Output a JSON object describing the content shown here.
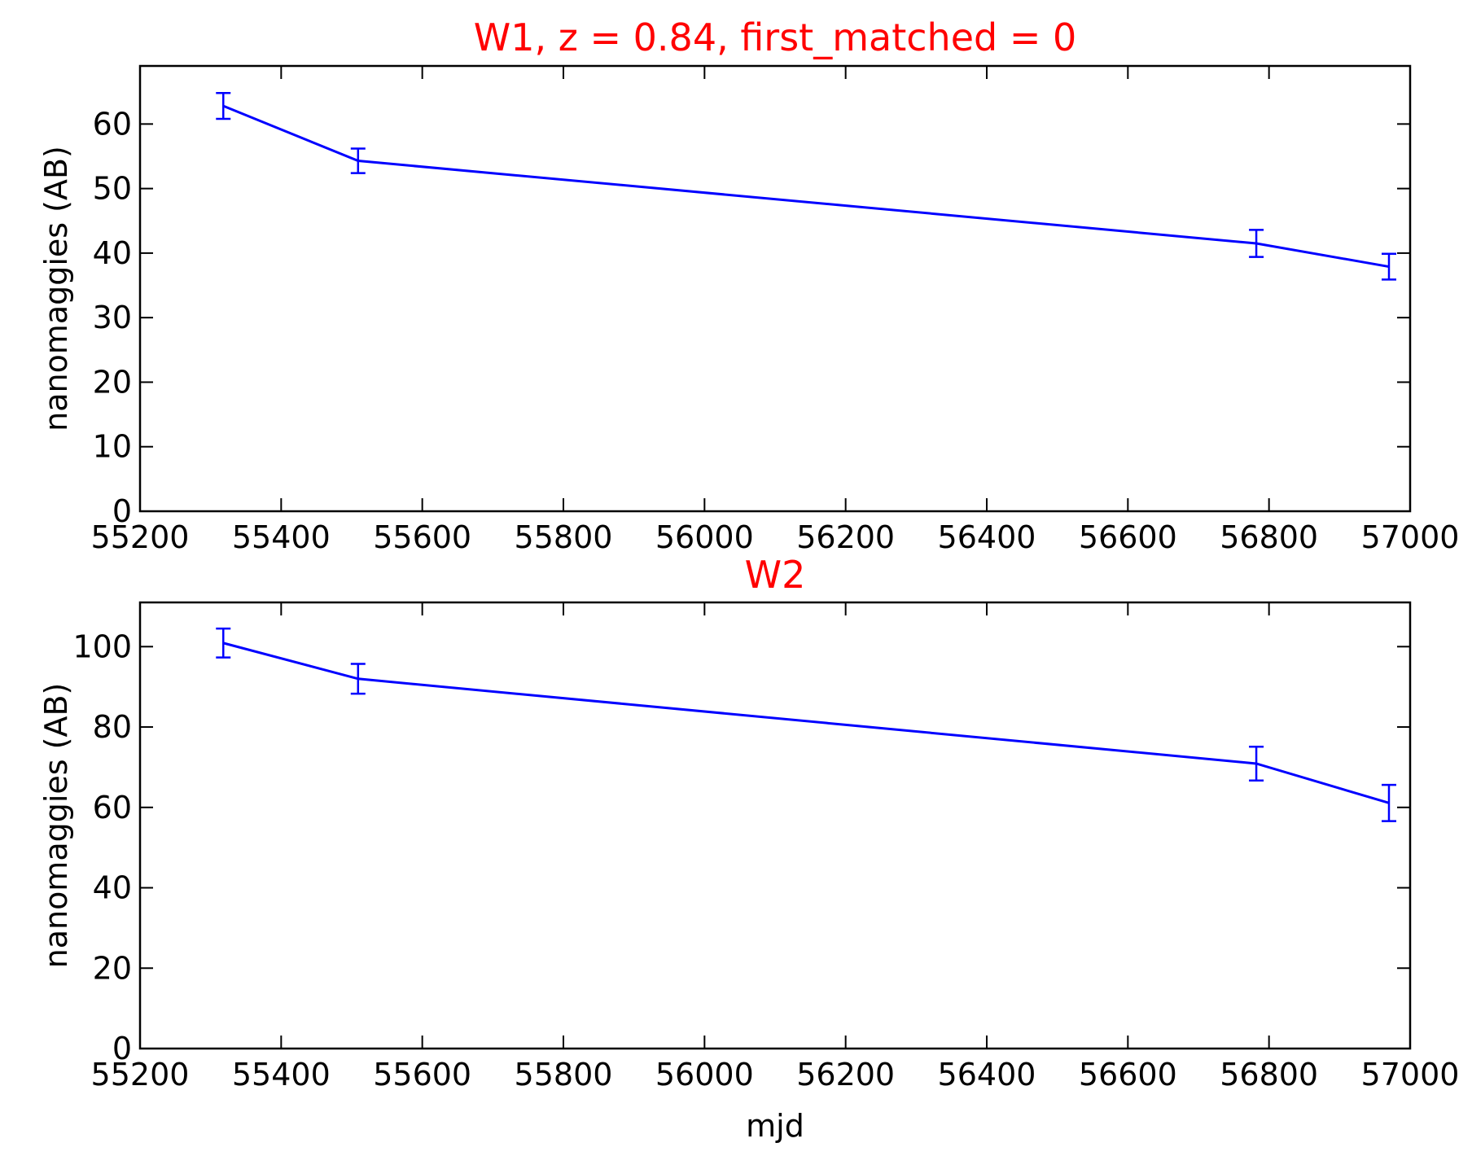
{
  "chart_data": [
    {
      "type": "line",
      "title": "W1, z = 0.84, first_matched = 0",
      "title_color": "#ff0000",
      "xlabel": "",
      "ylabel": "nanomaggies (AB)",
      "xlim": [
        55200,
        57000
      ],
      "ylim": [
        0,
        69
      ],
      "xticks": [
        55200,
        55400,
        55600,
        55800,
        56000,
        56200,
        56400,
        56600,
        56800,
        57000
      ],
      "yticks": [
        0,
        10,
        20,
        30,
        40,
        50,
        60
      ],
      "grid": false,
      "series": [
        {
          "color": "#0000ff",
          "x": [
            55318,
            55509,
            56782,
            56970
          ],
          "y": [
            62.8,
            54.3,
            41.5,
            37.9
          ],
          "yerr": [
            2.0,
            1.9,
            2.1,
            2.0
          ]
        }
      ]
    },
    {
      "type": "line",
      "title": "W2",
      "title_color": "#ff0000",
      "xlabel": "mjd",
      "ylabel": "nanomaggies (AB)",
      "xlim": [
        55200,
        57000
      ],
      "ylim": [
        0,
        111
      ],
      "xticks": [
        55200,
        55400,
        55600,
        55800,
        56000,
        56200,
        56400,
        56600,
        56800,
        57000
      ],
      "yticks": [
        0,
        20,
        40,
        60,
        80,
        100
      ],
      "grid": false,
      "series": [
        {
          "color": "#0000ff",
          "x": [
            55318,
            55509,
            56782,
            56970
          ],
          "y": [
            100.9,
            92.0,
            70.9,
            61.1
          ],
          "yerr": [
            3.6,
            3.7,
            4.2,
            4.5
          ]
        }
      ]
    }
  ]
}
